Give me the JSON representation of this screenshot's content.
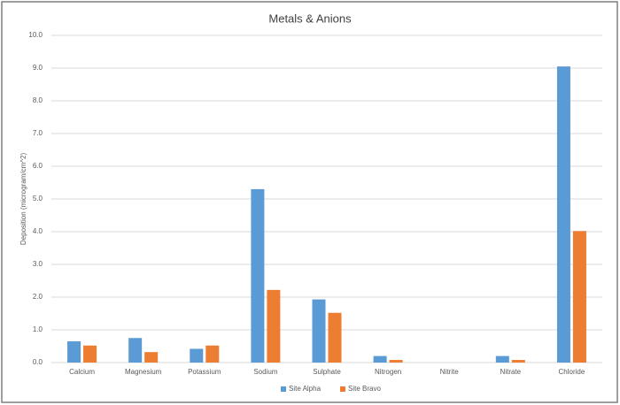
{
  "chart_data": {
    "type": "bar",
    "title": "Metals & Anions",
    "y_label": "Deposition (microgram/cm^2)",
    "categories": [
      "Calcium",
      "Magnesium",
      "Potassium",
      "Sodium",
      "Sulphate",
      "Nitrogen",
      "Nitrite",
      "Nitrate",
      "Chloride"
    ],
    "series": [
      {
        "name": "Site Alpha",
        "color": "#5b9bd5",
        "values": [
          0.65,
          0.75,
          0.42,
          5.3,
          1.93,
          0.2,
          0,
          0.2,
          9.05
        ]
      },
      {
        "name": "Site Bravo",
        "color": "#ed7d31",
        "values": [
          0.52,
          0.32,
          0.52,
          2.22,
          1.52,
          0.08,
          0,
          0.08,
          4.02
        ]
      }
    ],
    "ylim": [
      0,
      10
    ],
    "yticks": [
      {
        "value": 0,
        "label": "0.0"
      },
      {
        "value": 1,
        "label": "1.0"
      },
      {
        "value": 2,
        "label": "2.0"
      },
      {
        "value": 3,
        "label": "3.0"
      },
      {
        "value": 4,
        "label": "4.0"
      },
      {
        "value": 5,
        "label": "5.0"
      },
      {
        "value": 6,
        "label": "6.0"
      },
      {
        "value": 7,
        "label": "7.0"
      },
      {
        "value": 8,
        "label": "8.0"
      },
      {
        "value": 9,
        "label": "9.0"
      },
      {
        "value": 10,
        "label": "10.0"
      }
    ],
    "grid": true,
    "legend": "bottom"
  }
}
